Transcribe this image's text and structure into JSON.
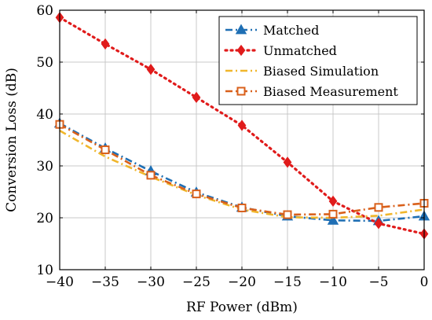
{
  "chart_data": {
    "type": "line",
    "xlabel": "RF Power (dBm)",
    "ylabel": "Conversion Loss (dB)",
    "xlim": [
      -40,
      0
    ],
    "ylim": [
      10,
      60
    ],
    "x_ticks": [
      -40,
      -35,
      -30,
      -25,
      -20,
      -15,
      -10,
      -5,
      0
    ],
    "y_ticks": [
      10,
      20,
      30,
      40,
      50,
      60
    ],
    "x_tick_labels": [
      "−40",
      "−35",
      "−30",
      "−25",
      "−20",
      "−15",
      "−10",
      "−5",
      "0"
    ],
    "y_tick_labels": [
      "10",
      "20",
      "30",
      "40",
      "50",
      "60"
    ],
    "grid": true,
    "legend_position": "top-right",
    "x": [
      -40,
      -35,
      -30,
      -25,
      -20,
      -15,
      -10,
      -5,
      0
    ],
    "series": [
      {
        "name": "Matched",
        "values": [
          38.2,
          33.4,
          29.0,
          24.9,
          22.0,
          20.3,
          19.5,
          19.4,
          20.3
        ],
        "color": "#1f6fb4",
        "dash": "dashdot",
        "marker": "triangle"
      },
      {
        "name": "Unmatched",
        "values": [
          58.6,
          53.5,
          48.6,
          43.2,
          37.8,
          30.7,
          23.2,
          18.9,
          16.9
        ],
        "color": "#e01b1b",
        "dash": "dotted",
        "marker": "diamond"
      },
      {
        "name": "Biased Simulation",
        "values": [
          36.8,
          31.8,
          27.9,
          24.4,
          21.6,
          20.1,
          20.0,
          20.4,
          21.6
        ],
        "color": "#f0b62c",
        "dash": "dashdot",
        "marker": "none"
      },
      {
        "name": "Biased Measurement",
        "values": [
          38.0,
          33.1,
          28.2,
          24.6,
          21.9,
          20.6,
          20.7,
          22.0,
          22.8
        ],
        "color": "#d9601b",
        "dash": "dashdot",
        "marker": "square"
      }
    ]
  }
}
